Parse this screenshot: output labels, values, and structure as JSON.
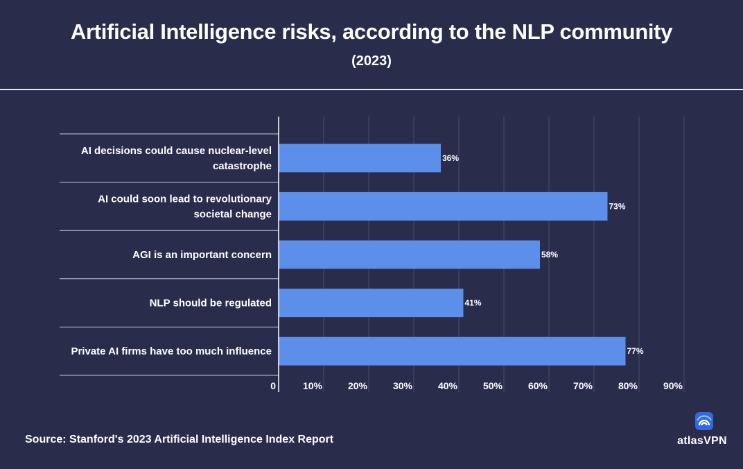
{
  "header": {
    "title": "Artificial Intelligence risks, according to the NLP community",
    "subtitle": "(2023)"
  },
  "footer": {
    "source": "Source: Stanford's 2023 Artificial Intelligence Index Report",
    "brand": "atlasVPN"
  },
  "colors": {
    "background": "#2a2c4c",
    "bar": "#5b8fea",
    "text": "#ffffff",
    "grid": "#4a4c6a"
  },
  "chart_data": {
    "type": "bar",
    "orientation": "horizontal",
    "title": "Artificial Intelligence risks, according to the NLP community",
    "subtitle": "(2023)",
    "categories": [
      [
        "AI decisions could cause nuclear-level",
        "catastrophe"
      ],
      [
        "AI could soon lead to revolutionary",
        "societal change"
      ],
      [
        "AGI is an important concern"
      ],
      [
        "NLP should be regulated"
      ],
      [
        "Private AI firms have too much influence"
      ]
    ],
    "values": [
      36,
      73,
      58,
      41,
      77
    ],
    "value_labels": [
      "36%",
      "73%",
      "58%",
      "41%",
      "77%"
    ],
    "xlim": [
      0,
      90
    ],
    "ticks": [
      0,
      10,
      20,
      30,
      40,
      50,
      60,
      70,
      80,
      90
    ],
    "tick_labels": [
      "0",
      "10%",
      "20%",
      "30%",
      "40%",
      "50%",
      "60%",
      "70%",
      "80%",
      "90%"
    ],
    "grid": true,
    "legend": "none"
  }
}
